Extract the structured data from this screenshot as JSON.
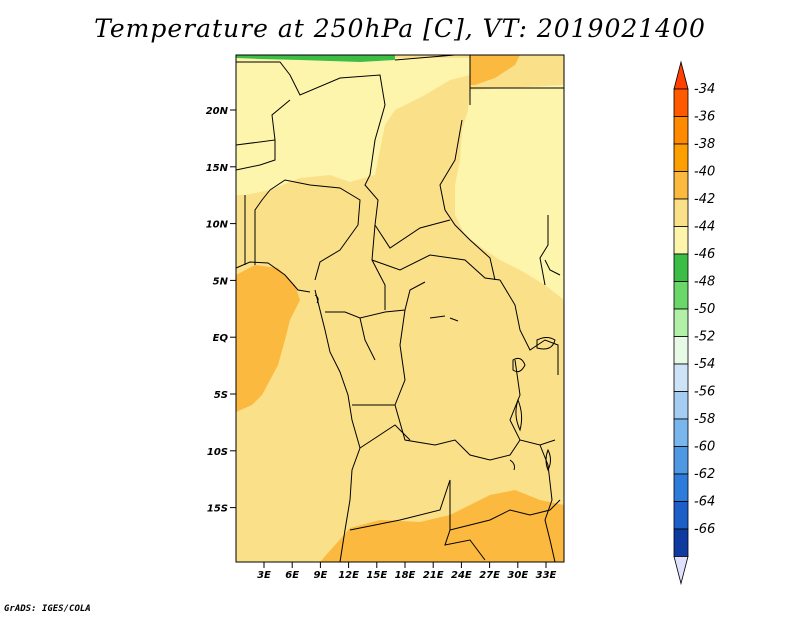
{
  "title": "Temperature at 250hPa [C], VT: 2019021400",
  "footer": "GrADS: IGES/COLA",
  "colors": {
    "c_38": "#fbb93f",
    "c_40": "#fbe08a",
    "c_42": "#fdf5ab",
    "c_44": "#3cbe46"
  },
  "map": {
    "lat_labels": [
      "20N",
      "15N",
      "10N",
      "5N",
      "EQ",
      "5S",
      "10S",
      "15S"
    ],
    "lon_labels": [
      "3E",
      "6E",
      "9E",
      "12E",
      "15E",
      "18E",
      "21E",
      "24E",
      "27E",
      "30E",
      "33E"
    ]
  },
  "colorbar": {
    "levels": [
      {
        "label": "-34",
        "color": "#ff5a00"
      },
      {
        "label": "-36",
        "color": "#ff8a00"
      },
      {
        "label": "-38",
        "color": "#fba000"
      },
      {
        "label": "-40",
        "color": "#fbb93f"
      },
      {
        "label": "-42",
        "color": "#fbe08a"
      },
      {
        "label": "-44",
        "color": "#fdf5ab"
      },
      {
        "label": "-46",
        "color": "#3cbe46"
      },
      {
        "label": "-48",
        "color": "#6ad76a"
      },
      {
        "label": "-50",
        "color": "#b2f0a8"
      },
      {
        "label": "-52",
        "color": "#e6fae6"
      },
      {
        "label": "-54",
        "color": "#cde4f7"
      },
      {
        "label": "-56",
        "color": "#a5cdf1"
      },
      {
        "label": "-58",
        "color": "#78b6ec"
      },
      {
        "label": "-60",
        "color": "#4e98e4"
      },
      {
        "label": "-62",
        "color": "#2d7cdb"
      },
      {
        "label": "-64",
        "color": "#1c5fc8"
      },
      {
        "label": "-66",
        "color": "#0f3aa0"
      }
    ],
    "top_color": "#ff4000",
    "bottom_color": "#0a1c78",
    "bottom_tip_color": "#e0e0ff"
  }
}
